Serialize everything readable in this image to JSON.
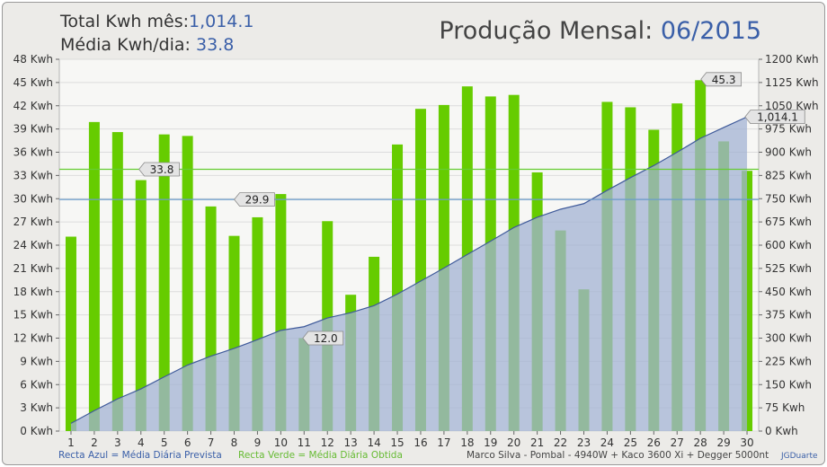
{
  "header": {
    "total_label": "Total Kwh mês:",
    "total_value": "1,014.1",
    "avg_label": "Média Kwh/dia:",
    "avg_value": "33.8",
    "title_label": "Produção Mensal:",
    "title_value": "06/2015"
  },
  "footer": {
    "blue_line_legend": "Recta Azul = Média Diária Prevista",
    "green_line_legend": "Recta Verde = Média Diária Obtida",
    "system_info": "Marco Silva - Pombal - 4940W + Kaco 3600 Xi + Degger 5000nt",
    "credit": "JGDuarte"
  },
  "colors": {
    "bar": "#66cc00",
    "bar_overlap": "#5aa83c",
    "area_fill": "#a3b3d3",
    "area_line": "#3f5a9a",
    "avg_line": "#66cc33",
    "forecast_line": "#6a9ccc",
    "plot_bg": "#f7f7f5",
    "grid": "#dcdcdc"
  },
  "chart_data": {
    "type": "bar",
    "categories": [
      "1",
      "2",
      "3",
      "4",
      "5",
      "6",
      "7",
      "8",
      "9",
      "10",
      "11",
      "12",
      "13",
      "14",
      "15",
      "16",
      "17",
      "18",
      "19",
      "20",
      "21",
      "22",
      "23",
      "24",
      "25",
      "26",
      "27",
      "28",
      "29",
      "30"
    ],
    "series": [
      {
        "axis": "left",
        "type": "bar",
        "values": [
          25.1,
          39.9,
          38.6,
          32.4,
          38.3,
          38.1,
          29.0,
          25.2,
          27.6,
          30.6,
          12.0,
          27.1,
          17.6,
          22.5,
          37.0,
          41.6,
          42.1,
          44.5,
          43.2,
          43.4,
          33.4,
          25.9,
          18.3,
          42.5,
          41.8,
          38.9,
          42.3,
          45.3,
          37.4,
          33.6
        ]
      },
      {
        "axis": "right",
        "type": "area",
        "values": [
          25,
          66,
          104,
          136,
          175,
          213,
          242,
          267,
          295,
          325,
          337,
          365,
          382,
          405,
          442,
          484,
          526,
          570,
          613,
          657,
          690,
          716,
          734,
          777,
          818,
          857,
          900,
          945,
          980,
          1014.1
        ]
      }
    ],
    "reference_lines": [
      {
        "axis": "left",
        "value": 33.8,
        "label": "33.8"
      },
      {
        "axis": "left",
        "value": 29.9,
        "label": "29.9"
      }
    ],
    "annotations": [
      {
        "x": "11",
        "label": "12.0"
      },
      {
        "x": "28",
        "label": "45.3"
      },
      {
        "x": "30",
        "label": "1,014.1"
      }
    ],
    "y_left": {
      "ylim": [
        0,
        48
      ],
      "step": 3,
      "unit": " Kwh"
    },
    "y_right": {
      "ylim": [
        0,
        1200
      ],
      "step": 75,
      "unit": " Kwh"
    },
    "grid": true,
    "legend": "none"
  }
}
